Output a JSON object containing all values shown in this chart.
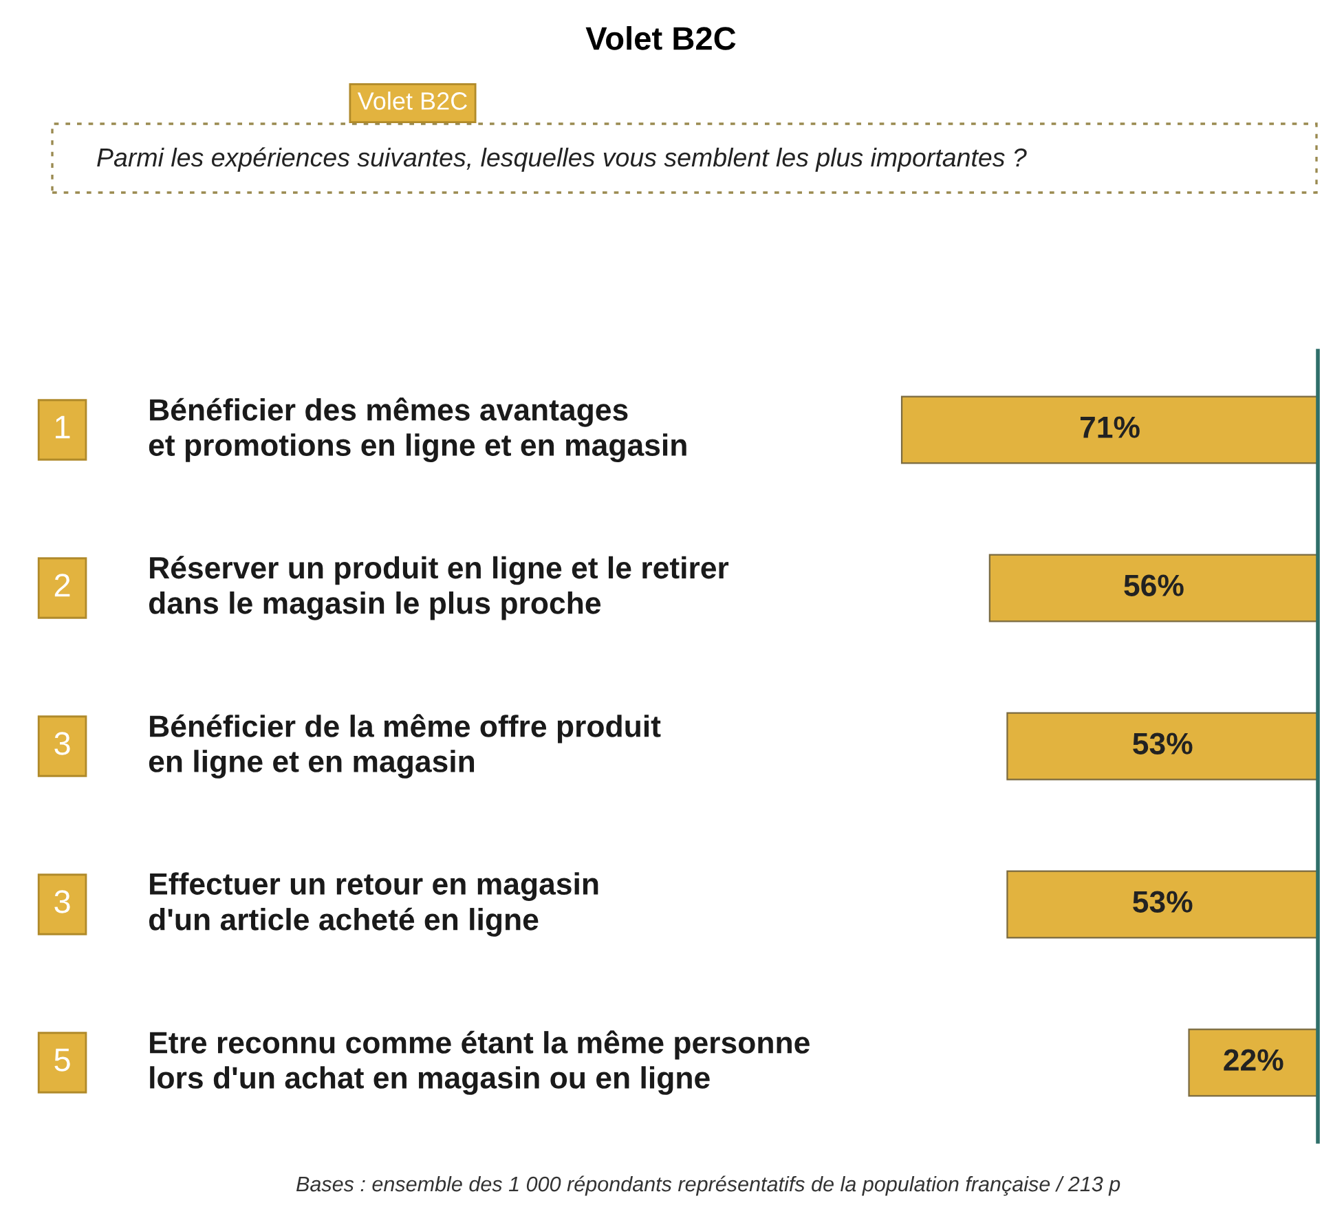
{
  "chart_data": {
    "type": "bar",
    "orientation": "horizontal",
    "title": "Volet B2C",
    "subtitle": "Parmi les expériences suivantes, lesquelles vous semblent les plus importantes ?",
    "categories": [
      "Bénéficier des mêmes avantages\net promotions en ligne et en magasin",
      "Réserver un produit en ligne et le retirer\ndans le magasin le plus proche",
      "Bénéficier de la même offre produit\nen ligne et en magasin",
      "Effectuer un retour en magasin\nd'un article acheté en ligne",
      "Etre reconnu comme étant la même personne\nlors d'un achat en magasin ou en ligne"
    ],
    "values": [
      71,
      56,
      53,
      53,
      22
    ],
    "value_labels": [
      "71%",
      "56%",
      "53%",
      "53%",
      "22%"
    ],
    "color": "#e2b33f",
    "annotations": [
      "Volet B2C",
      "1",
      "2",
      "3",
      "3",
      "5",
      "Bases : ensemble des 1 000 répondants représentatifs de la population française / 213 p"
    ],
    "data_labels": true
  }
}
